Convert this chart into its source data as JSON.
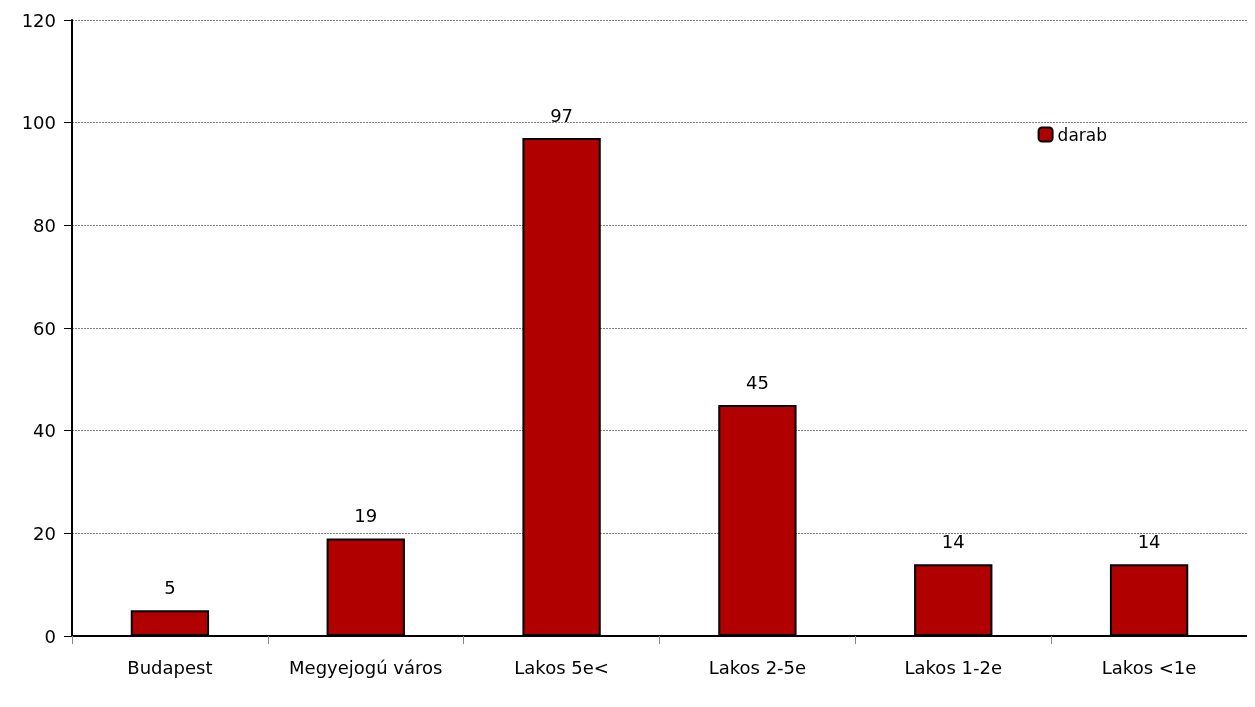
{
  "chart_data": {
    "type": "bar",
    "categories": [
      "Budapest",
      "Megyejogú város",
      "Lakos 5e<",
      "Lakos 2-5e",
      "Lakos 1-2e",
      "Lakos <1e"
    ],
    "series": [
      {
        "name": "darab",
        "color": "#b00000",
        "values": [
          5,
          19,
          97,
          45,
          14,
          14
        ]
      }
    ],
    "ylim": [
      0,
      120
    ],
    "yticks": [
      0,
      20,
      40,
      60,
      80,
      100,
      120
    ],
    "grid": "y",
    "legend": "top right",
    "data_labels": true
  }
}
